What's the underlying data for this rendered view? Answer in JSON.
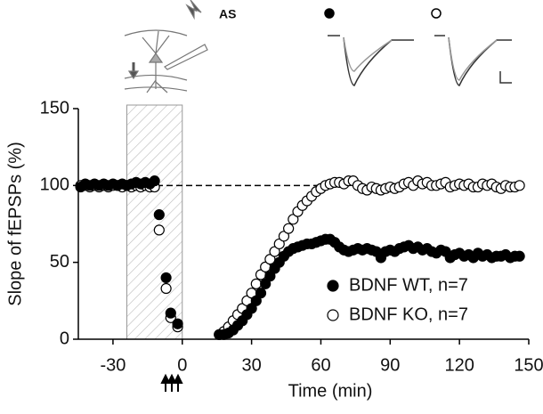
{
  "chart_data": {
    "type": "scatter",
    "xlabel": "Time (min)",
    "ylabel": "Slope of fEPSPs (%)",
    "inset_label": "AS",
    "xlim": [
      -45,
      150
    ],
    "ylim": [
      0,
      150
    ],
    "xticks": [
      -30,
      0,
      30,
      60,
      90,
      120,
      150
    ],
    "yticks": [
      0,
      50,
      100,
      150
    ],
    "legend": "lower right",
    "hline": {
      "y": 100,
      "x": [
        -45,
        67
      ]
    },
    "shaded": [
      -24,
      0
    ],
    "x": [
      -44,
      -42,
      -40,
      -38,
      -36,
      -34,
      -32,
      -30,
      -28,
      -26,
      -24,
      -22,
      -20,
      -18,
      -16,
      -14,
      -12,
      -10,
      -7,
      -5,
      -2,
      16,
      18,
      20,
      22,
      24,
      26,
      28,
      30,
      32,
      34,
      36,
      38,
      40,
      42,
      44,
      46,
      48,
      50,
      52,
      54,
      56,
      58,
      60,
      62,
      64,
      66,
      68,
      70,
      72,
      74,
      76,
      78,
      80,
      82,
      84,
      86,
      88,
      90,
      92,
      94,
      96,
      98,
      100,
      102,
      104,
      106,
      108,
      110,
      112,
      114,
      116,
      118,
      120,
      122,
      124,
      126,
      128,
      130,
      132,
      134,
      136,
      138,
      140,
      142,
      144,
      146
    ],
    "series": [
      {
        "name": "BDNF KO, n=7",
        "color": "#000000",
        "fill": "#ffffff",
        "values": [
          100,
          100,
          99,
          100,
          99,
          100,
          99,
          100,
          100,
          99,
          100,
          99,
          100,
          99,
          100,
          99,
          99,
          71,
          33,
          14,
          8,
          3,
          5,
          8,
          12,
          16,
          20,
          25,
          30,
          36,
          42,
          47,
          52,
          57,
          62,
          67,
          72,
          78,
          83,
          87,
          90,
          93,
          96,
          98,
          100,
          101,
          102,
          102,
          101,
          103,
          103,
          100,
          98,
          97,
          99,
          98,
          97,
          98,
          99,
          98,
          99,
          101,
          102,
          100,
          103,
          101,
          102,
          100,
          100,
          101,
          102,
          99,
          100,
          101,
          100,
          101,
          99,
          99,
          101,
          100,
          101,
          99,
          98,
          100,
          99,
          99,
          100
        ]
      },
      {
        "name": "BDNF WT, n=7",
        "color": "#000000",
        "fill": "#000000",
        "values": [
          99,
          101,
          100,
          101,
          100,
          101,
          100,
          101,
          100,
          101,
          100,
          101,
          102,
          101,
          102,
          101,
          103,
          81,
          40,
          17,
          10,
          3,
          3,
          4,
          6,
          9,
          12,
          16,
          20,
          25,
          30,
          36,
          41,
          46,
          50,
          54,
          57,
          59,
          60,
          61,
          62,
          62,
          63,
          64,
          65,
          65,
          63,
          60,
          58,
          57,
          58,
          59,
          58,
          59,
          58,
          57,
          53,
          57,
          58,
          57,
          59,
          60,
          61,
          59,
          60,
          58,
          59,
          57,
          56,
          58,
          57,
          53,
          55,
          56,
          54,
          55,
          53,
          56,
          54,
          55,
          53,
          54,
          54,
          55,
          53,
          54,
          54
        ]
      }
    ]
  }
}
